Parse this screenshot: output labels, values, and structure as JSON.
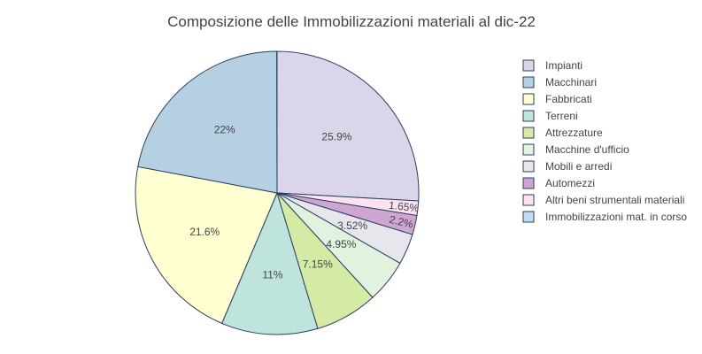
{
  "chart_data": {
    "type": "pie",
    "title": "Composizione delle Immobilizzazioni materiali al dic-22",
    "legend_position": "right",
    "slice_order": "clockwise",
    "start_angle_deg": 0,
    "stroke_color": "#2a3f5f",
    "slices": [
      {
        "label": "Impianti",
        "value": 25.9,
        "display": "25.9%",
        "color": "#dad5e8"
      },
      {
        "label": "Altri beni strumentali materiali",
        "value": 1.65,
        "display": "1.65%",
        "color": "#fde2f0"
      },
      {
        "label": "Automezzi",
        "value": 2.2,
        "display": "2.2%",
        "color": "#cfa5d3"
      },
      {
        "label": "Mobili e arredi",
        "value": 3.52,
        "display": "3.52%",
        "color": "#e6e6ec"
      },
      {
        "label": "Macchine d'ufficio",
        "value": 4.95,
        "display": "4.95%",
        "color": "#e1f3df"
      },
      {
        "label": "Attrezzature",
        "value": 7.15,
        "display": "7.15%",
        "color": "#d4eaa5"
      },
      {
        "label": "Terreni",
        "value": 11.0,
        "display": "11%",
        "color": "#bfe4de"
      },
      {
        "label": "Fabbricati",
        "value": 21.6,
        "display": "21.6%",
        "color": "#ffffd2"
      },
      {
        "label": "Macchinari",
        "value": 22.0,
        "display": "22%",
        "color": "#b5cfe3"
      },
      {
        "label": "Immobilizzazioni mat. in corso",
        "value": 0.03,
        "display": "",
        "color": "#bfdcf3"
      }
    ],
    "legend": [
      {
        "label": "Impianti",
        "color": "#dad5e8"
      },
      {
        "label": "Macchinari",
        "color": "#b5cfe3"
      },
      {
        "label": "Fabbricati",
        "color": "#ffffd2"
      },
      {
        "label": "Terreni",
        "color": "#bfe4de"
      },
      {
        "label": "Attrezzature",
        "color": "#d4eaa5"
      },
      {
        "label": "Macchine d'ufficio",
        "color": "#e1f3df"
      },
      {
        "label": "Mobili e arredi",
        "color": "#e6e6ec"
      },
      {
        "label": "Automezzi",
        "color": "#cfa5d3"
      },
      {
        "label": "Altri beni strumentali materiali",
        "color": "#fde2f0"
      },
      {
        "label": "Immobilizzazioni mat. in corso",
        "color": "#bfdcf3"
      }
    ]
  }
}
